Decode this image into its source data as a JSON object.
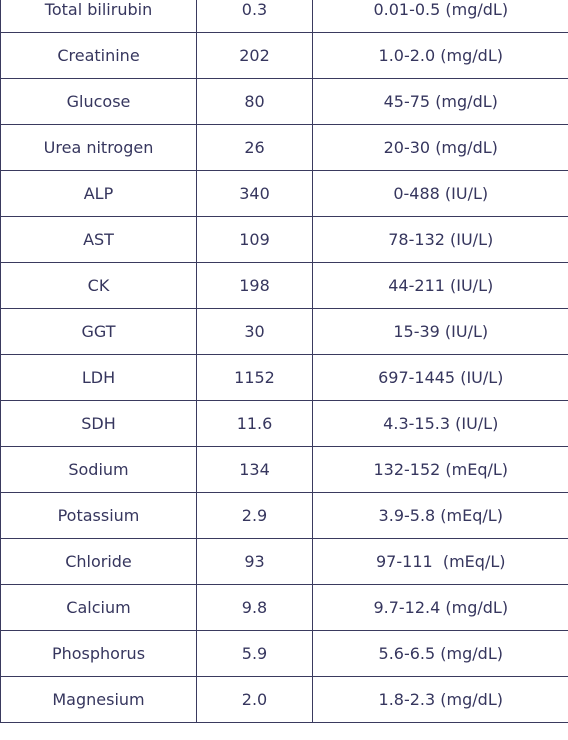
{
  "table": {
    "rows": [
      {
        "analyte": "Total bilirubin",
        "value": "0.3",
        "range": "0.01-0.5 (mg/dL)"
      },
      {
        "analyte": "Creatinine",
        "value": "202",
        "range": "1.0-2.0 (mg/dL)"
      },
      {
        "analyte": "Glucose",
        "value": "80",
        "range": "45-75 (mg/dL)"
      },
      {
        "analyte": "Urea nitrogen",
        "value": "26",
        "range": "20-30 (mg/dL)"
      },
      {
        "analyte": "ALP",
        "value": "340",
        "range": "0-488 (IU/L)"
      },
      {
        "analyte": "AST",
        "value": "109",
        "range": "78-132 (IU/L)"
      },
      {
        "analyte": "CK",
        "value": "198",
        "range": "44-211 (IU/L)"
      },
      {
        "analyte": "GGT",
        "value": "30",
        "range": "15-39 (IU/L)"
      },
      {
        "analyte": "LDH",
        "value": "1152",
        "range": "697-1445 (IU/L)"
      },
      {
        "analyte": "SDH",
        "value": "11.6",
        "range": "4.3-15.3 (IU/L)"
      },
      {
        "analyte": "Sodium",
        "value": "134",
        "range": "132-152 (mEq/L)"
      },
      {
        "analyte": "Potassium",
        "value": "2.9",
        "range": "3.9-5.8 (mEq/L)"
      },
      {
        "analyte": "Chloride",
        "value": "93",
        "range": "97-111  (mEq/L)"
      },
      {
        "analyte": "Calcium",
        "value": "9.8",
        "range": "9.7-12.4 (mg/dL)"
      },
      {
        "analyte": "Phosphorus",
        "value": "5.9",
        "range": "5.6-6.5 (mg/dL)"
      },
      {
        "analyte": "Magnesium",
        "value": "2.0",
        "range": "1.8-2.3 (mg/dL)"
      }
    ]
  }
}
